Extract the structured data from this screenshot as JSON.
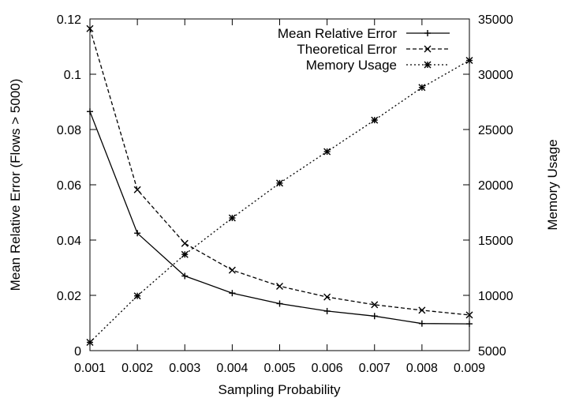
{
  "chart_data": {
    "type": "line",
    "x": [
      0.001,
      0.002,
      0.003,
      0.004,
      0.005,
      0.006,
      0.007,
      0.008,
      0.009
    ],
    "x_tick_labels": [
      "0.001",
      "0.002",
      "0.003",
      "0.004",
      "0.005",
      "0.006",
      "0.007",
      "0.008",
      "0.009"
    ],
    "xlim": [
      0.001,
      0.009
    ],
    "xlabel": "Sampling Probability",
    "ylabel_left": "Mean Relative Error (Flows > 5000)",
    "ylim_left": [
      0,
      0.12
    ],
    "y_left_ticks": [
      0,
      0.02,
      0.04,
      0.06,
      0.08,
      0.1,
      0.12
    ],
    "y_left_tick_labels": [
      "0",
      "0.02",
      "0.04",
      "0.06",
      "0.08",
      "0.1",
      "0.12"
    ],
    "ylabel_right": "Memory Usage",
    "ylim_right": [
      5000,
      35000
    ],
    "y_right_ticks": [
      5000,
      10000,
      15000,
      20000,
      25000,
      30000,
      35000
    ],
    "y_right_tick_labels": [
      "5000",
      "10000",
      "15000",
      "20000",
      "25000",
      "30000",
      "35000"
    ],
    "grid": false,
    "legend_position": "top-right",
    "series": [
      {
        "name": "Mean Relative Error",
        "axis": "left",
        "line_style": "solid",
        "marker": "plus",
        "values": [
          0.0865,
          0.0425,
          0.027,
          0.0208,
          0.017,
          0.0143,
          0.0125,
          0.0098,
          0.0097
        ]
      },
      {
        "name": "Theoretical Error",
        "axis": "left",
        "line_style": "dashed",
        "marker": "cross",
        "values": [
          0.1165,
          0.0582,
          0.0388,
          0.0291,
          0.0233,
          0.0194,
          0.0166,
          0.0146,
          0.0129
        ]
      },
      {
        "name": "Memory Usage",
        "axis": "right",
        "line_style": "dotted",
        "marker": "star",
        "values": [
          5750,
          9950,
          13700,
          17000,
          20150,
          23000,
          25850,
          28800,
          31250
        ]
      }
    ]
  }
}
